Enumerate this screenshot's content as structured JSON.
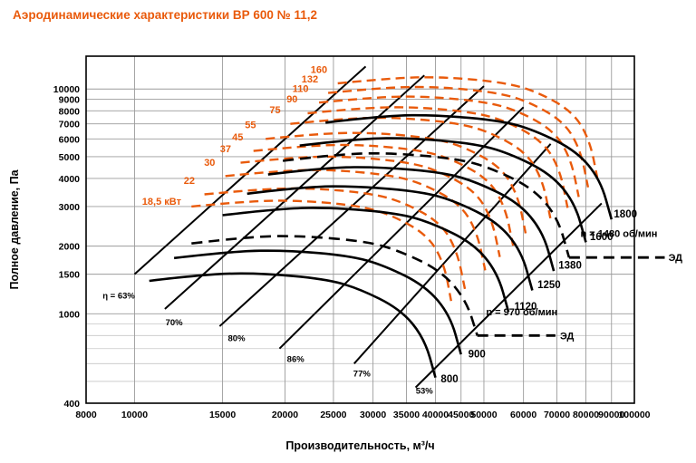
{
  "page": {
    "title": "Аэродинамические характеристики ВР 600 № 11,2"
  },
  "colors": {
    "accent": "#E95A0B",
    "curve": "#000000",
    "grid": "#9b9b9b",
    "grid_minor": "#c6c6c6",
    "background": "#ffffff"
  },
  "chart_data": {
    "type": "line",
    "title": "Аэродинамические характеристики ВР 600 № 11,2",
    "xlabel": "Производительность, м³/ч",
    "ylabel": "Полное давление, Па",
    "x_scale": "log",
    "y_scale": "log",
    "xlim": [
      8000,
      100000
    ],
    "ylim": [
      400,
      14000
    ],
    "grid": true,
    "x_ticks": [
      8000,
      10000,
      15000,
      20000,
      25000,
      30000,
      35000,
      40000,
      45000,
      50000,
      60000,
      70000,
      80000,
      90000,
      100000
    ],
    "y_ticks": [
      400,
      1000,
      1500,
      2000,
      3000,
      4000,
      5000,
      6000,
      7000,
      8000,
      9000,
      10000
    ],
    "y_minor_gridlines": [
      500,
      600,
      700,
      800,
      900
    ],
    "rpm_curves": [
      {
        "label": "800",
        "points": [
          [
            10700,
            1400
          ],
          [
            14000,
            1505
          ],
          [
            18000,
            1515
          ],
          [
            24000,
            1430
          ],
          [
            28000,
            1300
          ],
          [
            34000,
            1050
          ],
          [
            38000,
            780
          ],
          [
            40000,
            520
          ]
        ],
        "label_at": [
          41000,
          495
        ]
      },
      {
        "label": "900",
        "points": [
          [
            12000,
            1770
          ],
          [
            15800,
            1900
          ],
          [
            20300,
            1915
          ],
          [
            27000,
            1810
          ],
          [
            31500,
            1645
          ],
          [
            38200,
            1330
          ],
          [
            42800,
            985
          ],
          [
            45000,
            660
          ]
        ],
        "label_at": [
          46500,
          640
        ]
      },
      {
        "label": "1120",
        "points": [
          [
            15000,
            2745
          ],
          [
            19700,
            2950
          ],
          [
            25200,
            2965
          ],
          [
            33600,
            2800
          ],
          [
            39200,
            2545
          ],
          [
            47600,
            2060
          ],
          [
            53200,
            1530
          ],
          [
            56000,
            1020
          ]
        ],
        "label_at": [
          57500,
          1040
        ]
      },
      {
        "label": "1250",
        "points": [
          [
            16800,
            3420
          ],
          [
            22000,
            3680
          ],
          [
            28100,
            3695
          ],
          [
            37500,
            3490
          ],
          [
            43800,
            3170
          ],
          [
            53100,
            2570
          ],
          [
            59400,
            1905
          ],
          [
            62500,
            1270
          ]
        ],
        "label_at": [
          64000,
          1300
        ]
      },
      {
        "label": "1380",
        "points": [
          [
            18500,
            4165
          ],
          [
            24300,
            4480
          ],
          [
            31100,
            4500
          ],
          [
            41400,
            4255
          ],
          [
            48300,
            3860
          ],
          [
            58600,
            3130
          ],
          [
            65600,
            2320
          ],
          [
            69000,
            1550
          ]
        ],
        "label_at": [
          70500,
          1590
        ]
      },
      {
        "label": "1600",
        "points": [
          [
            21400,
            5600
          ],
          [
            28300,
            6030
          ],
          [
            36000,
            6050
          ],
          [
            48000,
            5710
          ],
          [
            56000,
            5190
          ],
          [
            68000,
            4200
          ],
          [
            76000,
            3120
          ],
          [
            80000,
            2080
          ]
        ],
        "label_at": [
          81500,
          2130
        ]
      },
      {
        "label": "1800",
        "points": [
          [
            24100,
            7090
          ],
          [
            31800,
            7630
          ],
          [
            40500,
            7660
          ],
          [
            54000,
            7230
          ],
          [
            63000,
            6570
          ],
          [
            76500,
            5320
          ],
          [
            85500,
            3950
          ],
          [
            90000,
            2630
          ]
        ],
        "label_at": [
          91000,
          2680
        ]
      }
    ],
    "motor_curves": [
      {
        "label": "n = 970 об/мин",
        "tag": "ЭД",
        "points": [
          [
            13000,
            2055
          ],
          [
            17100,
            2210
          ],
          [
            21800,
            2220
          ],
          [
            29100,
            2100
          ],
          [
            33900,
            1905
          ],
          [
            41200,
            1545
          ],
          [
            46100,
            1145
          ],
          [
            48500,
            800
          ]
        ],
        "ext": [
          [
            48500,
            800
          ],
          [
            69500,
            800
          ]
        ],
        "label_at": [
          50500,
          985
        ],
        "tag_at": [
          71000,
          800
        ]
      },
      {
        "label": "n = 1480 об/мин",
        "tag": "ЭД",
        "points": [
          [
            19800,
            4790
          ],
          [
            26100,
            5160
          ],
          [
            33300,
            5180
          ],
          [
            44400,
            4890
          ],
          [
            51800,
            4440
          ],
          [
            62900,
            3600
          ],
          [
            70300,
            2670
          ],
          [
            74000,
            1780
          ]
        ],
        "ext": [
          [
            74000,
            1780
          ],
          [
            115000,
            1780
          ]
        ],
        "label_at": [
          78000,
          2200
        ],
        "tag_at": [
          117000,
          1780
        ]
      }
    ],
    "power_curves": [
      {
        "label": "18,5 кВт",
        "points": [
          [
            13000,
            3000
          ],
          [
            17000,
            3180
          ],
          [
            21600,
            3190
          ],
          [
            28000,
            3030
          ],
          [
            32600,
            2760
          ],
          [
            38600,
            2240
          ],
          [
            41600,
            1680
          ],
          [
            43000,
            1140
          ]
        ],
        "label_at": [
          12400,
          3050
        ]
      },
      {
        "label": "22",
        "points": [
          [
            13800,
            3400
          ],
          [
            18100,
            3600
          ],
          [
            22900,
            3620
          ],
          [
            29800,
            3430
          ],
          [
            34600,
            3130
          ],
          [
            41000,
            2540
          ],
          [
            44200,
            1900
          ],
          [
            45800,
            1290
          ]
        ],
        "label_at": [
          13200,
          3780
        ]
      },
      {
        "label": "30",
        "points": [
          [
            15200,
            4100
          ],
          [
            19900,
            4350
          ],
          [
            25200,
            4370
          ],
          [
            32800,
            4130
          ],
          [
            38000,
            3770
          ],
          [
            45000,
            3060
          ],
          [
            48500,
            2290
          ],
          [
            50300,
            1560
          ]
        ],
        "label_at": [
          14500,
          4560
        ]
      },
      {
        "label": "37",
        "points": [
          [
            16300,
            4700
          ],
          [
            21300,
            4990
          ],
          [
            26900,
            5010
          ],
          [
            35000,
            4740
          ],
          [
            40600,
            4330
          ],
          [
            48100,
            3510
          ],
          [
            51900,
            2630
          ],
          [
            53800,
            1790
          ]
        ],
        "label_at": [
          15600,
          5240
        ]
      },
      {
        "label": "45",
        "points": [
          [
            17300,
            5300
          ],
          [
            22600,
            5620
          ],
          [
            28600,
            5650
          ],
          [
            37200,
            5350
          ],
          [
            43200,
            4880
          ],
          [
            51200,
            3960
          ],
          [
            55200,
            2960
          ],
          [
            57200,
            2010
          ]
        ],
        "label_at": [
          16500,
          5900
        ]
      },
      {
        "label": "55",
        "points": [
          [
            18300,
            6000
          ],
          [
            24000,
            6370
          ],
          [
            30300,
            6390
          ],
          [
            39500,
            6050
          ],
          [
            45800,
            5520
          ],
          [
            54200,
            4480
          ],
          [
            58500,
            3350
          ],
          [
            60600,
            2280
          ]
        ],
        "label_at": [
          17500,
          6700
        ]
      },
      {
        "label": "75",
        "points": [
          [
            20500,
            7000
          ],
          [
            26900,
            7430
          ],
          [
            34000,
            7460
          ],
          [
            44200,
            7060
          ],
          [
            51400,
            6440
          ],
          [
            60800,
            5230
          ],
          [
            65600,
            3910
          ],
          [
            67900,
            2660
          ]
        ],
        "label_at": [
          19600,
          7800
        ]
      },
      {
        "label": "90",
        "points": [
          [
            22200,
            7800
          ],
          [
            29100,
            8280
          ],
          [
            36800,
            8310
          ],
          [
            47900,
            7870
          ],
          [
            55600,
            7180
          ],
          [
            65800,
            5820
          ],
          [
            71000,
            4360
          ],
          [
            73500,
            2960
          ]
        ],
        "label_at": [
          21200,
          8700
        ]
      },
      {
        "label": "110",
        "points": [
          [
            23400,
            8700
          ],
          [
            30600,
            9230
          ],
          [
            38700,
            9270
          ],
          [
            50400,
            8770
          ],
          [
            58500,
            8010
          ],
          [
            69200,
            6500
          ],
          [
            74700,
            4860
          ],
          [
            77400,
            3310
          ]
        ],
        "label_at": [
          22300,
          9700
        ]
      },
      {
        "label": "132",
        "points": [
          [
            24400,
            9600
          ],
          [
            32000,
            10190
          ],
          [
            40500,
            10230
          ],
          [
            52600,
            9680
          ],
          [
            61100,
            8840
          ],
          [
            72300,
            7170
          ],
          [
            78000,
            5360
          ],
          [
            80800,
            3650
          ]
        ],
        "label_at": [
          23300,
          10700
        ]
      },
      {
        "label": "160",
        "points": [
          [
            25500,
            10600
          ],
          [
            33400,
            11250
          ],
          [
            42300,
            11300
          ],
          [
            54900,
            10690
          ],
          [
            63700,
            9760
          ],
          [
            75400,
            7920
          ],
          [
            81400,
            5920
          ],
          [
            84300,
            4030
          ]
        ],
        "label_at": [
          24300,
          11800
        ]
      }
    ],
    "efficiency_lines": [
      {
        "label": "η = 63%",
        "from": [
          10000,
          1500
        ],
        "to": [
          29000,
          12600
        ],
        "label_at": [
          9300,
          1170
        ]
      },
      {
        "label": "70%",
        "from": [
          11500,
          1050
        ],
        "to": [
          38000,
          11500
        ],
        "label_at": [
          12000,
          890
        ]
      },
      {
        "label": "80%",
        "from": [
          14800,
          880
        ],
        "to": [
          50000,
          10300
        ],
        "label_at": [
          16000,
          755
        ]
      },
      {
        "label": "86%",
        "from": [
          19500,
          700
        ],
        "to": [
          60000,
          8300
        ],
        "label_at": [
          21000,
          610
        ]
      },
      {
        "label": "77%",
        "from": [
          27500,
          600
        ],
        "to": [
          68000,
          5700
        ],
        "label_at": [
          28500,
          525
        ]
      },
      {
        "label": "53%",
        "from": [
          36500,
          470
        ],
        "to": [
          86000,
          3100
        ],
        "label_at": [
          38000,
          440
        ]
      }
    ]
  }
}
